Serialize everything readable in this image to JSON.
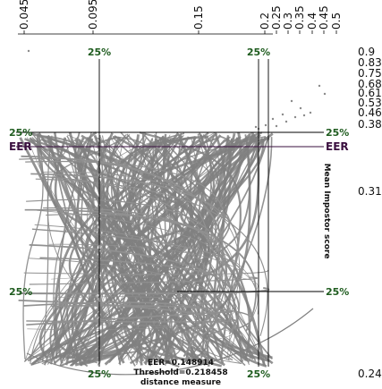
{
  "chart_data": {
    "type": "line",
    "title": "",
    "colors": {
      "lines": "#808080",
      "markers": "#1f5c1f",
      "eer": "#3a0f3f",
      "axis": "#000000"
    },
    "top_axis": {
      "label": "",
      "ticks": [
        "0.045",
        "0.095",
        "0.15",
        "0.2",
        "0.25",
        "0.3",
        "0.35",
        "0.4",
        "0.45",
        "0.5"
      ]
    },
    "right_axis": {
      "label": "Mean Impostor score",
      "ticks": [
        "0.9",
        "0.83",
        "0.75",
        "0.68",
        "0.61",
        "0.53",
        "0.46",
        "0.38",
        "0.31",
        "0.24"
      ]
    },
    "quartile_markers": {
      "top": [
        "25%",
        "25%"
      ],
      "bottom": [
        "25%",
        "25%"
      ],
      "left": [
        "25%",
        "25%"
      ],
      "right": [
        "25%",
        "25%"
      ]
    },
    "eer_marker": {
      "left": "EER",
      "right": "EER"
    },
    "stats": {
      "eer": "EER=0.148914",
      "threshold": "Threshold=0.218458",
      "bottom_label": "distance measure"
    },
    "series_note": "dense bundle of gray connecting curves (individual values not labeled)"
  }
}
